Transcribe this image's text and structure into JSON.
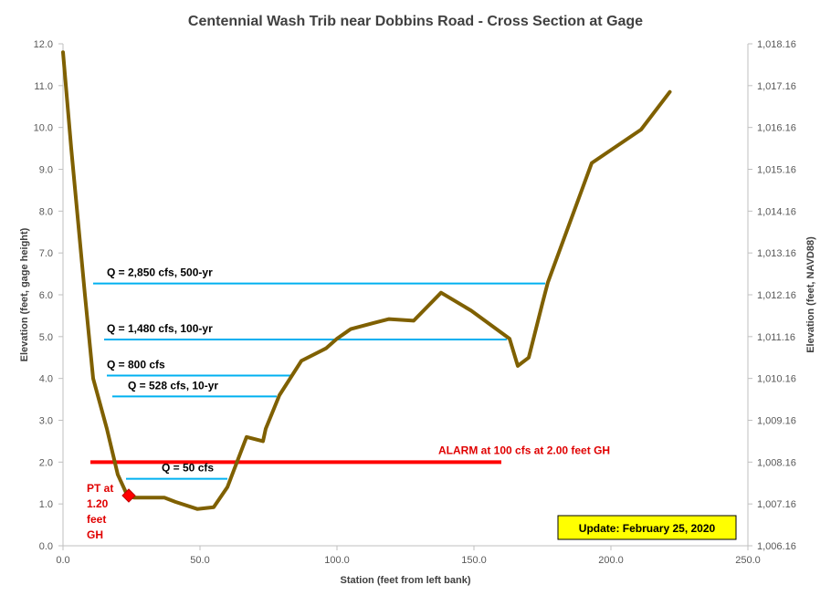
{
  "chart_data": {
    "type": "line",
    "title": "Centennial Wash Trib near Dobbins Road - Cross Section at Gage",
    "xlabel": "Station (feet from left bank)",
    "ylabel": "Elevation  (feet, gage height)",
    "y2label": "Elevation  (feet, NAVD88)",
    "xlim": [
      0,
      250
    ],
    "ylim": [
      0,
      12
    ],
    "y2_offset": 1006.16,
    "grid": false,
    "x_ticks": [
      0,
      50,
      100,
      150,
      200,
      250
    ],
    "x_tick_labels": [
      "0.0",
      "50.0",
      "100.0",
      "150.0",
      "200.0",
      "250.0"
    ],
    "y_ticks": [
      0,
      1,
      2,
      3,
      4,
      5,
      6,
      7,
      8,
      9,
      10,
      11,
      12
    ],
    "y_tick_labels": [
      "0.0",
      "1.0",
      "2.0",
      "3.0",
      "4.0",
      "5.0",
      "6.0",
      "7.0",
      "8.0",
      "9.0",
      "10.0",
      "11.0",
      "12.0"
    ],
    "y2_tick_labels": [
      "1,006.16",
      "1,007.16",
      "1,008.16",
      "1,009.16",
      "1,010.16",
      "1,011.16",
      "1,012.16",
      "1,013.16",
      "1,014.16",
      "1,015.16",
      "1,016.16",
      "1,017.16",
      "1,018.16"
    ],
    "series": [
      {
        "color": "#7F6000",
        "x": [
          0,
          3,
          8,
          11,
          16,
          20,
          23.5,
          26,
          37,
          41,
          49,
          55,
          60,
          67,
          73,
          74,
          79,
          87,
          96,
          100,
          105,
          113,
          119,
          128,
          138,
          149,
          163,
          166,
          170,
          175,
          177,
          193,
          211,
          221.5
        ],
        "y": [
          11.8,
          9.5,
          6.0,
          4.0,
          2.8,
          1.7,
          1.2,
          1.15,
          1.15,
          1.05,
          0.88,
          0.92,
          1.4,
          2.6,
          2.5,
          2.8,
          3.6,
          4.42,
          4.72,
          4.95,
          5.18,
          5.32,
          5.42,
          5.38,
          6.05,
          5.62,
          4.95,
          4.3,
          4.5,
          5.8,
          6.3,
          9.15,
          9.95,
          10.85
        ]
      }
    ],
    "flow_lines": [
      {
        "label": "Q = 2,850  cfs, 500-yr",
        "y": 6.27,
        "x0": 11,
        "x1": 176
      },
      {
        "label": "Q = 1,480  cfs, 100-yr",
        "y": 4.93,
        "x0": 15,
        "x1": 162
      },
      {
        "label": "Q = 800  cfs",
        "y": 4.07,
        "x0": 16,
        "x1": 83
      },
      {
        "label": "Q = 528  cfs, 10-yr",
        "y": 3.57,
        "x0": 18,
        "x1": 78
      },
      {
        "label": "Q = 50  cfs",
        "y": 1.6,
        "x0": 23,
        "x1": 60
      }
    ],
    "alarm": {
      "label": "ALARM at 100  cfs at 2.00 feet GH",
      "y": 2.0,
      "x0": 10,
      "x1": 160
    },
    "sensor": {
      "label_lines": [
        "PT at",
        "1.20",
        "feet",
        "GH"
      ],
      "x": 24,
      "y": 1.2
    },
    "update_box": {
      "text": "Update: February 25, 2020"
    },
    "colors": {
      "profile": "#7F6000",
      "flow": "#00B0F0",
      "alarm": "#FF0000",
      "alarm_text": "#E00000",
      "update_box_fill": "#FFFF00",
      "axis": "#BFBFBF",
      "text": "#404040"
    }
  }
}
